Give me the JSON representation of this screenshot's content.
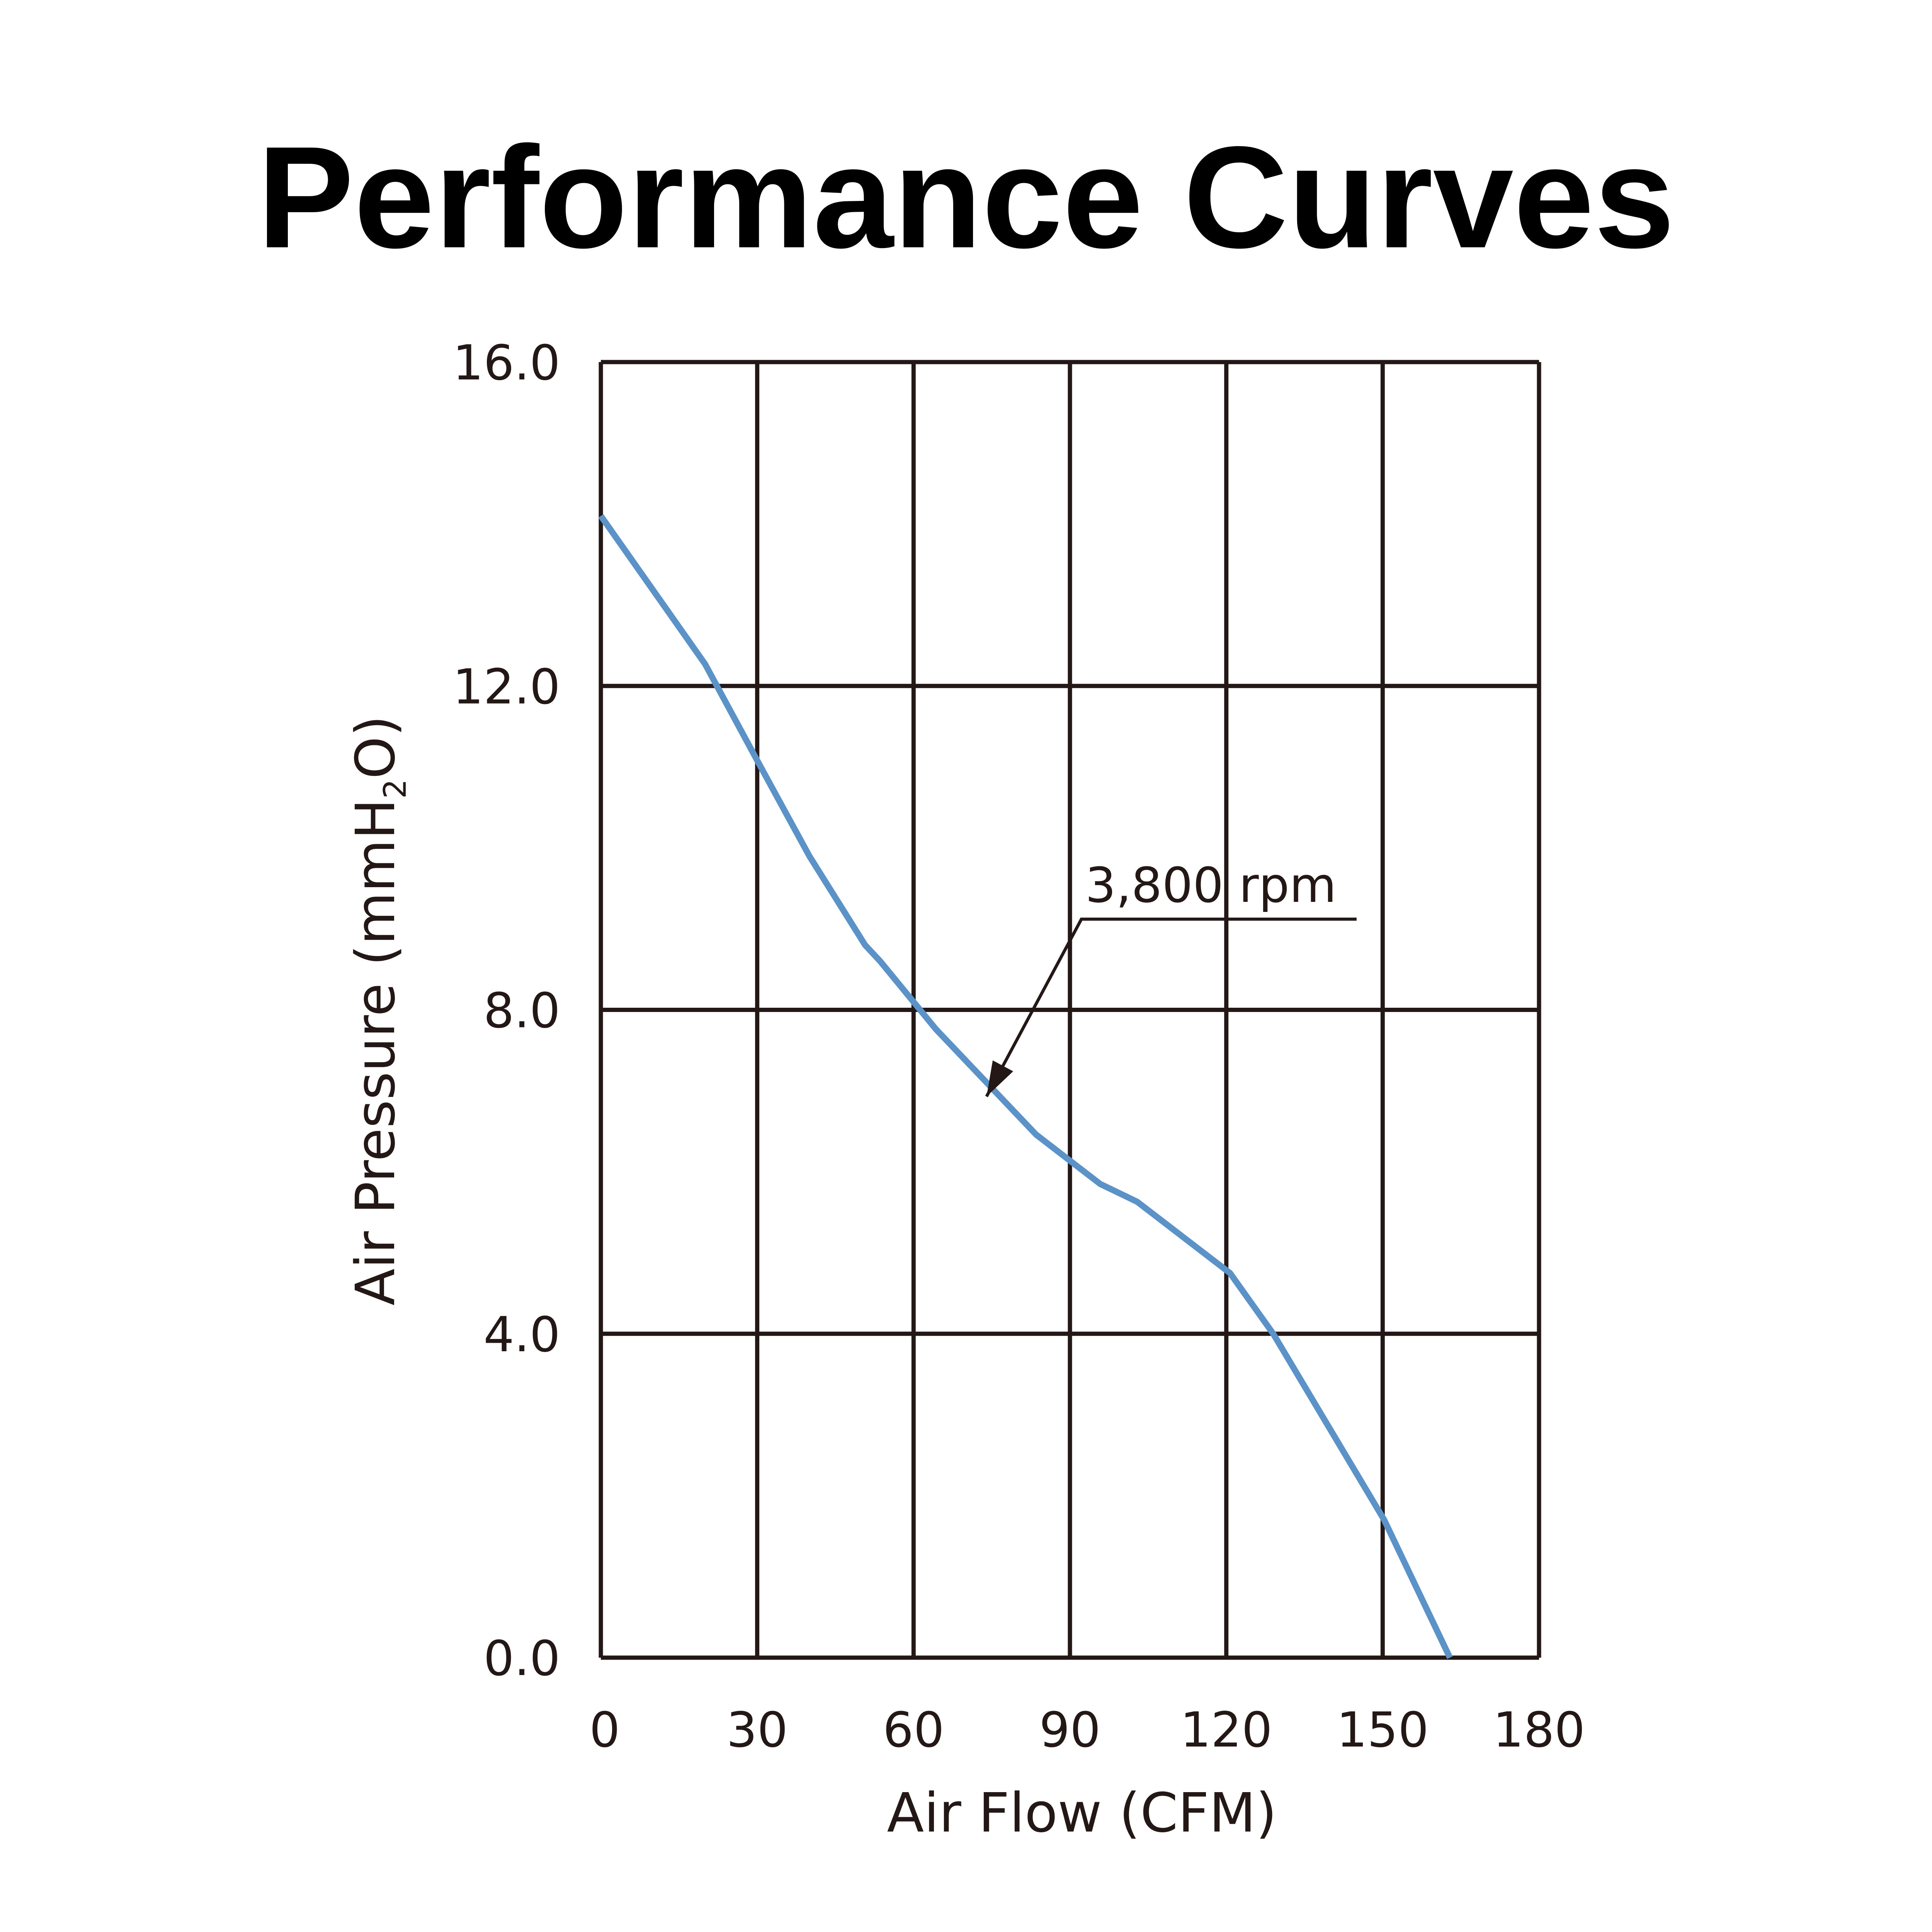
{
  "chart_data": {
    "type": "line",
    "title": "Performance Curves",
    "xlabel": "Air Flow (CFM)",
    "ylabel": "Air Pressure (mmH2O)",
    "ylabel_parts": {
      "main": "Air Pressure (mmH",
      "sub": "2",
      "end": "O)"
    },
    "xlim": [
      0,
      180
    ],
    "ylim": [
      0,
      16
    ],
    "xticks": [
      0,
      30,
      60,
      90,
      120,
      150,
      180
    ],
    "xtick_labels": [
      "0",
      "30",
      "60",
      "90",
      "120",
      "150",
      "180"
    ],
    "yticks": [
      0,
      4,
      8,
      12,
      16
    ],
    "ytick_labels": [
      "0.0",
      "4.0",
      "8.0",
      "12.0",
      "16.0"
    ],
    "grid": true,
    "series": [
      {
        "name": "3,800 rpm",
        "color": "#5b93c8",
        "x": [
          0,
          20,
          30,
          40,
          50.7,
          53.6,
          64.3,
          83.5,
          95.8,
          102.9,
          120.7,
          129,
          150.3,
          162.9
        ],
        "y": [
          14.1,
          12.27,
          11.08,
          9.9,
          8.8,
          8.6,
          7.76,
          6.46,
          5.85,
          5.63,
          4.75,
          4.0,
          1.7,
          0
        ]
      }
    ],
    "annotations": [
      {
        "text": "3,800 rpm",
        "leader": [
          [
            145,
            9.12
          ],
          [
            92.2,
            9.12
          ],
          [
            74,
            6.93
          ]
        ]
      }
    ]
  }
}
